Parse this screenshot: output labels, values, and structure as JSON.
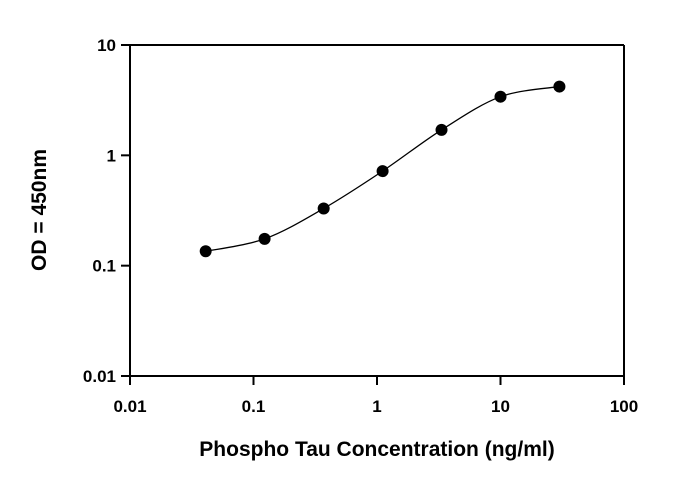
{
  "chart_data": {
    "type": "line",
    "title": "",
    "xlabel": "Phospho Tau Concentration (ng/ml)",
    "ylabel": "OD = 450nm",
    "xscale": "log",
    "yscale": "log",
    "xlim": [
      0.01,
      100
    ],
    "ylim": [
      0.01,
      10
    ],
    "xticks": [
      0.01,
      0.1,
      1,
      10,
      100
    ],
    "xtick_labels": [
      "0.01",
      "0.1",
      "1",
      "10",
      "100"
    ],
    "yticks": [
      0.01,
      0.1,
      1,
      10
    ],
    "ytick_labels": [
      "0.01",
      "0.1",
      "1",
      "10"
    ],
    "grid": false,
    "legend": "none",
    "series": [
      {
        "x": [
          0.041,
          0.123,
          0.37,
          1.11,
          3.33,
          10,
          30
        ],
        "y": [
          0.135,
          0.175,
          0.33,
          0.72,
          1.7,
          3.4,
          4.2
        ],
        "marker": "circle",
        "color": "#000000"
      }
    ]
  }
}
